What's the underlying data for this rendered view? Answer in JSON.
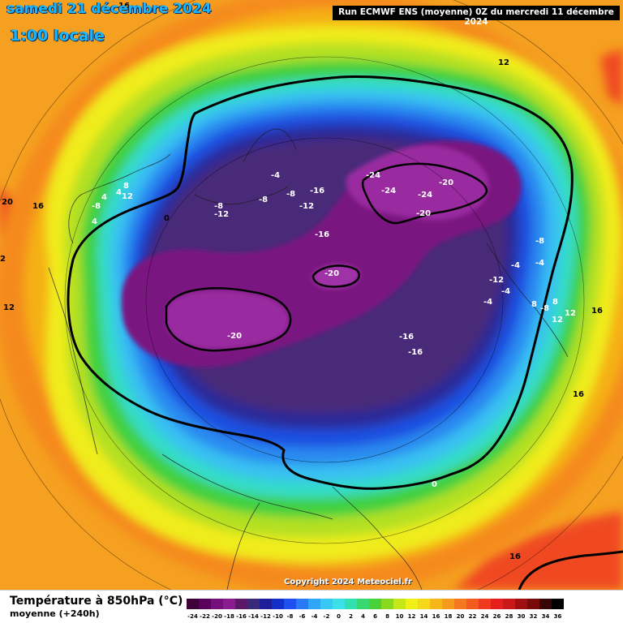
{
  "header": {
    "date_title": "samedi 21 décembre 2024",
    "time_title": "1:00 locale",
    "run_info": "Run ECMWF ENS (moyenne) 0Z du mercredi 11 décembre 2024"
  },
  "map": {
    "projection": "polar-stereographic",
    "variable": "Température à 850hPa",
    "colors": {
      "deep_cold_core": "#5a0a5e",
      "cold_core": "#8a1a8a",
      "deep_blue": "#1a1aa0",
      "blue": "#1f4fe0",
      "cyan": "#2fd2f0",
      "green": "#38d04a",
      "yellow": "#f2f018",
      "orange": "#f59a1c",
      "red": "#f04a20"
    },
    "contour_labels": [
      {
        "id": "l1",
        "text": "-24"
      },
      {
        "id": "l2",
        "text": "-24"
      },
      {
        "id": "l3",
        "text": "-24"
      },
      {
        "id": "l4",
        "text": "-20"
      },
      {
        "id": "l5",
        "text": "-20"
      },
      {
        "id": "l6",
        "text": "-20"
      },
      {
        "id": "l7",
        "text": "-20"
      },
      {
        "id": "l8",
        "text": "-16"
      },
      {
        "id": "l9",
        "text": "-16"
      },
      {
        "id": "l10",
        "text": "-16"
      },
      {
        "id": "l11",
        "text": "-16"
      },
      {
        "id": "l12",
        "text": "-12"
      },
      {
        "id": "l13",
        "text": "-12"
      },
      {
        "id": "l14",
        "text": "-12"
      },
      {
        "id": "l15",
        "text": "-8"
      },
      {
        "id": "l16",
        "text": "-8"
      },
      {
        "id": "l17",
        "text": "-8"
      },
      {
        "id": "l18",
        "text": "-8"
      },
      {
        "id": "l19",
        "text": "-8"
      },
      {
        "id": "l20",
        "text": "-8"
      },
      {
        "id": "l21",
        "text": "-4"
      },
      {
        "id": "l22",
        "text": "-4"
      },
      {
        "id": "l23",
        "text": "-4"
      },
      {
        "id": "l24",
        "text": "-4"
      },
      {
        "id": "l25",
        "text": "-4"
      },
      {
        "id": "l26",
        "text": "4"
      },
      {
        "id": "l27",
        "text": "4"
      },
      {
        "id": "l28",
        "text": "8"
      },
      {
        "id": "l29",
        "text": "8"
      },
      {
        "id": "l30",
        "text": "8"
      },
      {
        "id": "l31",
        "text": "12"
      },
      {
        "id": "l32",
        "text": "12"
      },
      {
        "id": "l33",
        "text": "12"
      },
      {
        "id": "l34",
        "text": "12"
      },
      {
        "id": "l35",
        "text": "16"
      },
      {
        "id": "l36",
        "text": "16"
      },
      {
        "id": "l37",
        "text": "16"
      },
      {
        "id": "l38",
        "text": "16"
      },
      {
        "id": "l39",
        "text": "16"
      },
      {
        "id": "l40",
        "text": "20"
      },
      {
        "id": "l41",
        "text": "0"
      },
      {
        "id": "l42",
        "text": "0"
      },
      {
        "id": "l43",
        "text": "12"
      },
      {
        "id": "l44",
        "text": "4"
      },
      {
        "id": "l45",
        "text": "2"
      }
    ]
  },
  "copyright": "Copyright 2024 Meteociel.fr",
  "footer": {
    "variable_title": "Température à 850hPa (°C)",
    "subtitle": "moyenne  (+240h)"
  },
  "legend": {
    "ticks": [
      "-24",
      "-22",
      "-20",
      "-18",
      "-16",
      "-14",
      "-12",
      "-10",
      "-8",
      "-6",
      "-4",
      "-2",
      "0",
      "2",
      "4",
      "6",
      "8",
      "10",
      "12",
      "14",
      "16",
      "18",
      "20",
      "22",
      "24",
      "26",
      "28",
      "30",
      "32",
      "34",
      "36"
    ],
    "colors": [
      "#3d0038",
      "#5a005a",
      "#75107a",
      "#8a1c8f",
      "#5b1868",
      "#3a2a7a",
      "#1e1e9a",
      "#1230c8",
      "#1e50f0",
      "#2a7af5",
      "#30a6f8",
      "#38c8f5",
      "#3be0e8",
      "#30e0b0",
      "#38d870",
      "#48d238",
      "#8ad81e",
      "#c6e818",
      "#f0f018",
      "#f5d818",
      "#f5b818",
      "#f59a1c",
      "#f57820",
      "#f25a20",
      "#f03a20",
      "#e61e1e",
      "#c81818",
      "#a01010",
      "#780a0a",
      "#380404",
      "#000000"
    ]
  }
}
